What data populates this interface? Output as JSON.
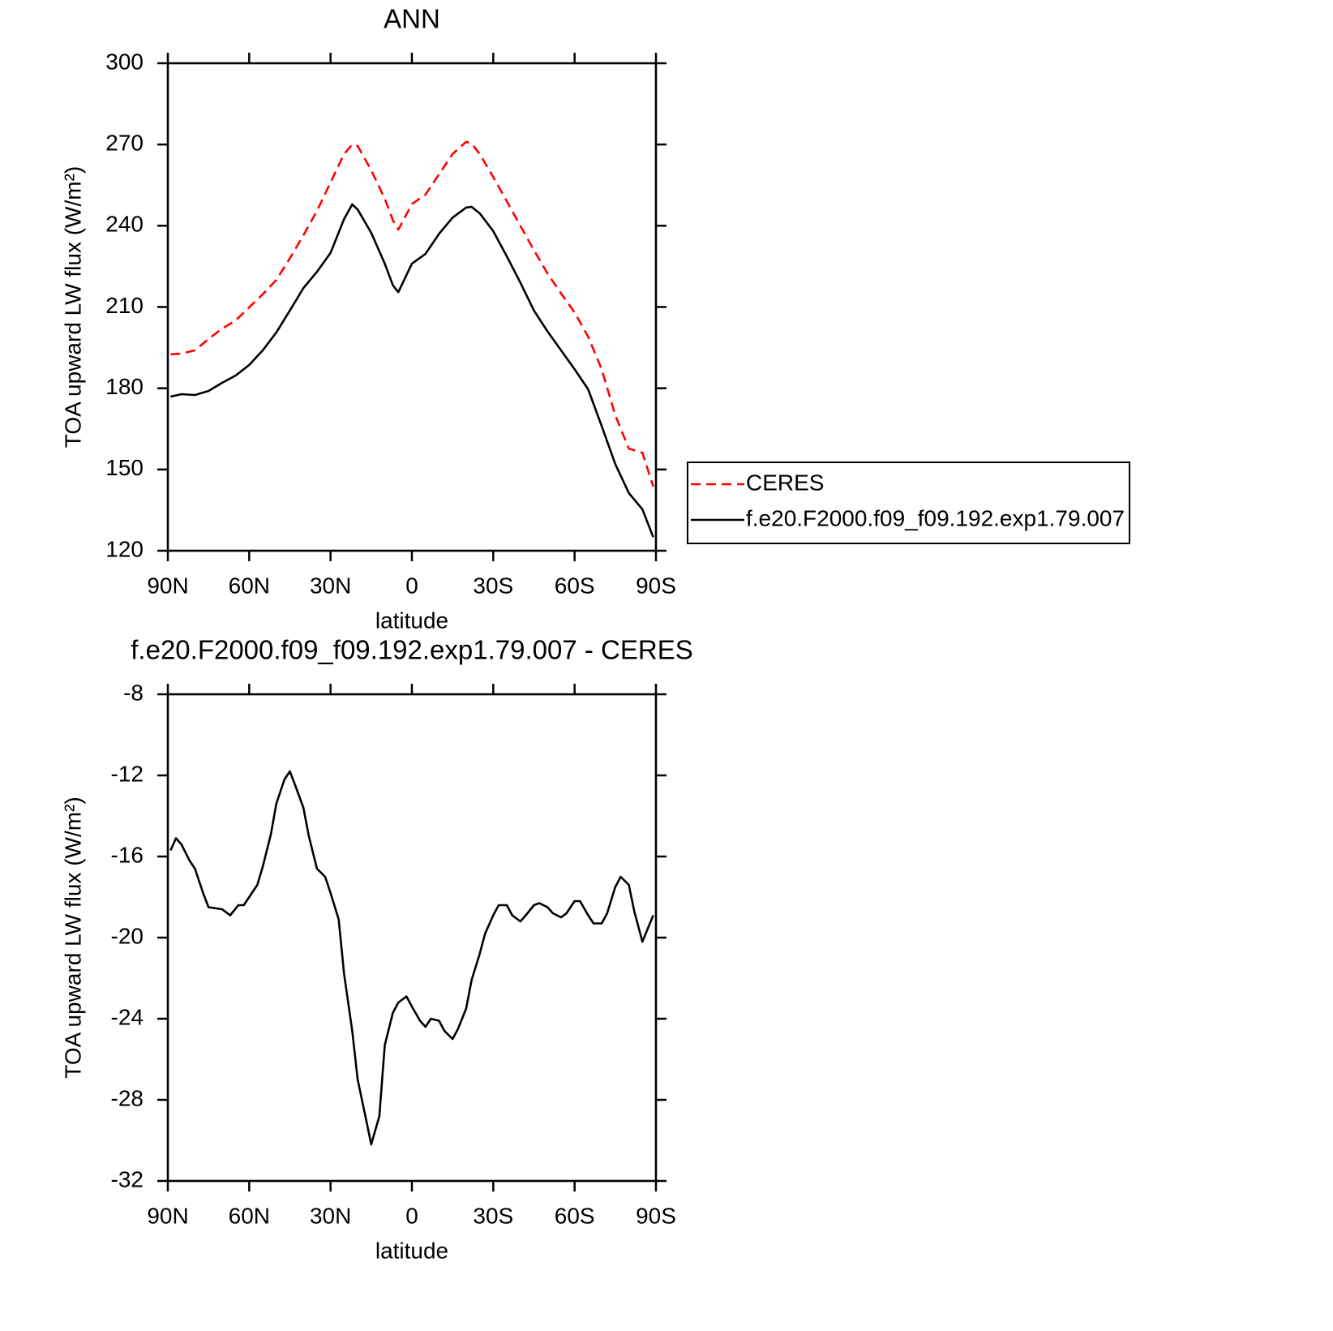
{
  "chart_data": [
    {
      "type": "line",
      "title": "ANN",
      "x_label": "latitude",
      "y_label": "TOA upward LW flux (W/m²)",
      "x": [
        89,
        85,
        80,
        75,
        70,
        65,
        60,
        55,
        50,
        45,
        40,
        35,
        30,
        25,
        22,
        20,
        15,
        10,
        7,
        5,
        0,
        -5,
        -10,
        -15,
        -20,
        -22,
        -25,
        -30,
        -35,
        -40,
        -45,
        -50,
        -55,
        -60,
        -65,
        -70,
        -75,
        -80,
        -85,
        -89
      ],
      "series": [
        {
          "name": "CERES",
          "color": "#ff0000",
          "linestyle": "dashed",
          "values": [
            192.5,
            192.8,
            194,
            198.2,
            202,
            205,
            209.9,
            214.7,
            220,
            228,
            236.5,
            245.5,
            256,
            266.5,
            270,
            269.5,
            260.5,
            250,
            242,
            238.6,
            248,
            251.5,
            259,
            266.5,
            271,
            270.4,
            266.5,
            258,
            249,
            240,
            231,
            222.4,
            215,
            208,
            199,
            187,
            170,
            157.7,
            156.2,
            143.7
          ]
        },
        {
          "name": "f.e20.F2000.f09_f09.192.exp1.79.007",
          "color": "#000000",
          "linestyle": "solid",
          "values": [
            176.9,
            177.8,
            177.5,
            179,
            182,
            184.7,
            188.6,
            194,
            200.6,
            208.7,
            217,
            223,
            230,
            242.5,
            247.9,
            246,
            237.4,
            226,
            218,
            215.5,
            226,
            229.6,
            237,
            243,
            246.7,
            247,
            244.6,
            238,
            228.7,
            219,
            208.7,
            201,
            194,
            187,
            179.6,
            166,
            152,
            141.3,
            135.3,
            125
          ]
        }
      ],
      "xlim": [
        90,
        -90
      ],
      "xticks": [
        {
          "value": 90,
          "label": "90N"
        },
        {
          "value": 60,
          "label": "60N"
        },
        {
          "value": 30,
          "label": "30N"
        },
        0,
        {
          "value": -30,
          "label": "30S"
        },
        {
          "value": -60,
          "label": "60S"
        },
        {
          "value": -90,
          "label": "90S"
        }
      ],
      "ylim": [
        120,
        300
      ],
      "yticks": [
        120,
        150,
        180,
        210,
        240,
        270,
        300
      ],
      "grid": false,
      "legend": "right"
    },
    {
      "type": "line",
      "title": "f.e20.F2000.f09_f09.192.exp1.79.007 - CERES",
      "x_label": "latitude",
      "y_label": "TOA upward LW flux (W/m²)",
      "x": [
        89,
        87,
        85,
        82,
        80,
        77,
        75,
        70,
        67,
        64,
        62,
        60,
        57,
        55,
        52,
        50,
        47,
        45,
        43,
        40,
        38,
        35,
        32,
        30,
        27,
        25,
        22,
        20,
        17,
        15,
        12,
        10,
        7,
        5,
        2,
        0,
        -3,
        -5,
        -7,
        -10,
        -12,
        -15,
        -17,
        -20,
        -22,
        -25,
        -27,
        -30,
        -32,
        -35,
        -37,
        -40,
        -42,
        -45,
        -47,
        -50,
        -52,
        -55,
        -57,
        -60,
        -62,
        -65,
        -67,
        -70,
        -72,
        -75,
        -77,
        -80,
        -82,
        -85,
        -89
      ],
      "series": [
        {
          "color": "#000000",
          "linestyle": "solid",
          "values": [
            -15.7,
            -15.1,
            -15.4,
            -16.2,
            -16.6,
            -17.8,
            -18.5,
            -18.6,
            -18.9,
            -18.4,
            -18.4,
            -18.0,
            -17.4,
            -16.5,
            -14.9,
            -13.4,
            -12.2,
            -11.8,
            -12.5,
            -13.6,
            -15.0,
            -16.6,
            -17.0,
            -17.8,
            -19.1,
            -21.8,
            -24.6,
            -27.0,
            -28.9,
            -30.2,
            -28.8,
            -25.3,
            -23.7,
            -23.2,
            -22.9,
            -23.4,
            -24.1,
            -24.4,
            -24.0,
            -24.1,
            -24.6,
            -25.0,
            -24.5,
            -23.5,
            -22.1,
            -20.8,
            -19.8,
            -18.9,
            -18.4,
            -18.4,
            -18.9,
            -19.2,
            -18.9,
            -18.4,
            -18.3,
            -18.5,
            -18.8,
            -19.0,
            -18.8,
            -18.2,
            -18.2,
            -18.9,
            -19.3,
            -19.3,
            -18.8,
            -17.5,
            -17.0,
            -17.4,
            -18.7,
            -20.2,
            -18.9
          ]
        }
      ],
      "xlim": [
        90,
        -90
      ],
      "xticks": [
        {
          "value": 90,
          "label": "90N"
        },
        {
          "value": 60,
          "label": "60N"
        },
        {
          "value": 30,
          "label": "30N"
        },
        0,
        {
          "value": -30,
          "label": "30S"
        },
        {
          "value": -60,
          "label": "60S"
        },
        {
          "value": -90,
          "label": "90S"
        }
      ],
      "ylim": [
        -32,
        -8
      ],
      "yticks": [
        -32,
        -28,
        -24,
        -20,
        -16,
        -12,
        -8
      ],
      "grid": false
    }
  ]
}
